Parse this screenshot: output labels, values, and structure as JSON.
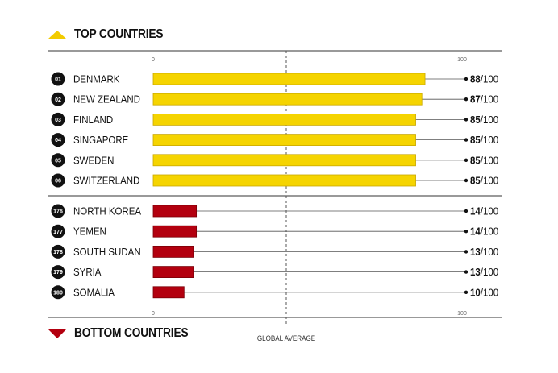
{
  "header": {
    "top_title": "TOP COUNTRIES",
    "bottom_title": "BOTTOM COUNTRIES",
    "global_average_label": "GLOBAL AVERAGE"
  },
  "colors": {
    "top_bar": "#f5d400",
    "top_bar_stroke": "#c9a800",
    "bottom_bar": "#b3000f",
    "bottom_bar_stroke": "#7a0008",
    "accent_top": "#f2cb00",
    "accent_bottom": "#b3000f"
  },
  "chart_data": {
    "type": "bar",
    "orientation": "horizontal",
    "xlim": [
      0,
      100
    ],
    "axis_tick_labels": [
      "0",
      "100"
    ],
    "value_suffix": "/100",
    "groups": [
      {
        "name": "TOP COUNTRIES",
        "ranks": [
          "01",
          "02",
          "03",
          "04",
          "05",
          "06"
        ],
        "categories": [
          "DENMARK",
          "NEW ZEALAND",
          "FINLAND",
          "SINGAPORE",
          "SWEDEN",
          "SWITZERLAND"
        ],
        "values": [
          88,
          87,
          85,
          85,
          85,
          85
        ]
      },
      {
        "name": "BOTTOM COUNTRIES",
        "ranks": [
          "176",
          "177",
          "178",
          "179",
          "180"
        ],
        "categories": [
          "NORTH KOREA",
          "YEMEN",
          "SOUTH SUDAN",
          "SYRIA",
          "SOMALIA"
        ],
        "values": [
          14,
          14,
          13,
          13,
          10
        ]
      }
    ]
  }
}
